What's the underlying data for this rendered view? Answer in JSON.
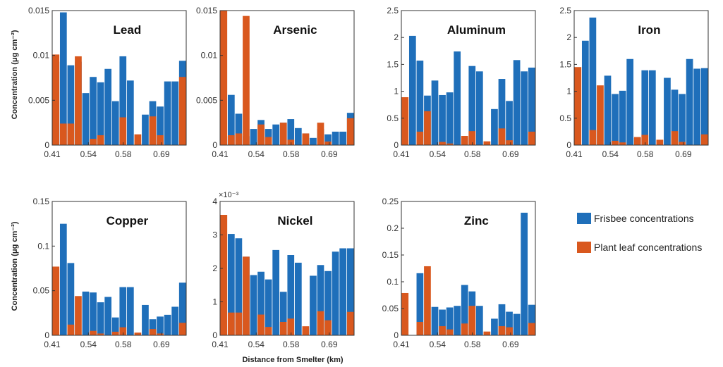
{
  "figure": {
    "ylabel": "Concentration (μg cm⁻²)",
    "xlabel": "Distance from Smelter (km)",
    "legend": [
      {
        "name": "Frisbee concentrations",
        "color": "#1f6fba"
      },
      {
        "name": "Plant leaf concentrations",
        "color": "#d9581e"
      }
    ]
  },
  "chart_data": [
    {
      "type": "bar",
      "title": "Lead",
      "ylim": [
        0,
        0.015
      ],
      "yticks": [
        "0",
        "0.005",
        "0.01",
        "0.015"
      ],
      "ytick_values": [
        0,
        0.005,
        0.01,
        0.015
      ],
      "xticks": [
        "0.41",
        "0.54",
        "0.58",
        "0.69"
      ],
      "series": [
        {
          "name": "Frisbee concentrations",
          "values": [
            0.0093,
            0.0148,
            0.0089,
            0.0093,
            0.0058,
            0.0076,
            0.007,
            0.0085,
            0.0049,
            0.0099,
            0.0072,
            0.0002,
            0.0034,
            0.0049,
            0.0043,
            0.0071,
            0.0071,
            0.0094
          ]
        },
        {
          "name": "Plant leaf concentrations",
          "values": [
            0.0101,
            0.0024,
            0.0024,
            0.0099,
            0.0,
            0.0007,
            0.0011,
            0.0,
            0.0,
            0.0031,
            0.0,
            0.0012,
            0.0,
            0.0032,
            0.0011,
            0.0,
            0.0,
            0.0076
          ]
        }
      ]
    },
    {
      "type": "bar",
      "title": "Arsenic",
      "ylim": [
        0,
        0.015
      ],
      "yticks": [
        "0",
        "0.005",
        "0.01",
        "0.015"
      ],
      "ytick_values": [
        0,
        0.005,
        0.01,
        0.015
      ],
      "xticks": [
        "0.41",
        "0.54",
        "0.58",
        "0.69"
      ],
      "series": [
        {
          "name": "Frisbee concentrations",
          "values": [
            0.001,
            0.0056,
            0.0035,
            0.001,
            0.0018,
            0.0028,
            0.0018,
            0.0023,
            0.0025,
            0.0029,
            0.0019,
            0.0013,
            0.0008,
            0.0018,
            0.0012,
            0.0015,
            0.0015,
            0.0036
          ]
        },
        {
          "name": "Plant leaf concentrations",
          "values": [
            0.015,
            0.0011,
            0.0013,
            0.0144,
            0.0,
            0.0023,
            0.0009,
            0.0,
            0.0025,
            0.0006,
            0.0,
            0.0013,
            0.0,
            0.0025,
            0.0004,
            0.0,
            0.0,
            0.003
          ]
        }
      ]
    },
    {
      "type": "bar",
      "title": "Aluminum",
      "ylim": [
        0,
        2.5
      ],
      "yticks": [
        "0",
        "0.5",
        "1",
        "1.5",
        "2",
        "2.5"
      ],
      "ytick_values": [
        0,
        0.5,
        1,
        1.5,
        2,
        2.5
      ],
      "xticks": [
        "0.41",
        "0.54",
        "0.58",
        "0.69"
      ],
      "series": [
        {
          "name": "Frisbee concentrations",
          "values": [
            0.0,
            2.03,
            1.57,
            0.92,
            1.2,
            0.93,
            0.98,
            1.74,
            0.14,
            1.47,
            1.37,
            0.0,
            0.67,
            1.23,
            0.82,
            1.58,
            1.37,
            1.44
          ]
        },
        {
          "name": "Plant leaf concentrations",
          "values": [
            0.89,
            0.0,
            0.25,
            0.63,
            0.0,
            0.06,
            0.03,
            0.0,
            0.17,
            0.26,
            0.0,
            0.07,
            0.0,
            0.31,
            0.09,
            0.0,
            0.0,
            0.25
          ]
        }
      ]
    },
    {
      "type": "bar",
      "title": "Iron",
      "ylim": [
        0,
        2.5
      ],
      "yticks": [
        "0",
        "0.5",
        "1",
        "1.5",
        "2",
        "2.5"
      ],
      "ytick_values": [
        0,
        0.5,
        1,
        1.5,
        2,
        2.5
      ],
      "xticks": [
        "0.41",
        "0.54",
        "0.58",
        "0.69"
      ],
      "series": [
        {
          "name": "Frisbee concentrations",
          "values": [
            0.0,
            1.94,
            2.37,
            0.0,
            1.29,
            0.95,
            1.01,
            1.6,
            0.13,
            1.39,
            1.39,
            0.0,
            1.25,
            1.03,
            0.95,
            1.6,
            1.42,
            1.43
          ]
        },
        {
          "name": "Plant leaf concentrations",
          "values": [
            1.45,
            0.0,
            0.28,
            1.11,
            0.0,
            0.08,
            0.05,
            0.0,
            0.15,
            0.19,
            0.0,
            0.1,
            0.0,
            0.26,
            0.06,
            0.0,
            0.0,
            0.2
          ]
        }
      ]
    },
    {
      "type": "bar",
      "title": "Copper",
      "ylim": [
        0,
        0.15
      ],
      "yticks": [
        "0",
        "0.05",
        "0.1",
        "0.15"
      ],
      "ytick_values": [
        0,
        0.05,
        0.1,
        0.15
      ],
      "xticks": [
        "0.41",
        "0.54",
        "0.58",
        "0.69"
      ],
      "series": [
        {
          "name": "Frisbee concentrations",
          "values": [
            0.0,
            0.125,
            0.081,
            0.0,
            0.049,
            0.048,
            0.037,
            0.043,
            0.02,
            0.054,
            0.054,
            0.0,
            0.034,
            0.018,
            0.021,
            0.023,
            0.032,
            0.059
          ]
        },
        {
          "name": "Plant leaf concentrations",
          "values": [
            0.077,
            0.0,
            0.012,
            0.044,
            0.0,
            0.005,
            0.002,
            0.0,
            0.004,
            0.009,
            0.0,
            0.003,
            0.0,
            0.007,
            0.002,
            0.0,
            0.0,
            0.014
          ]
        }
      ]
    },
    {
      "type": "bar",
      "title": "Nickel",
      "ylim": [
        0,
        4
      ],
      "yexponent": "×10⁻³",
      "yticks": [
        "0",
        "1",
        "2",
        "3",
        "4"
      ],
      "ytick_values": [
        0,
        1,
        2,
        3,
        4
      ],
      "xticks": [
        "0.41",
        "0.54",
        "0.58",
        "0.69"
      ],
      "series": [
        {
          "name": "Frisbee concentrations",
          "values": [
            0.0,
            3.03,
            2.9,
            2.35,
            1.8,
            1.9,
            1.67,
            2.55,
            1.3,
            2.4,
            2.17,
            0.0,
            1.78,
            2.1,
            1.92,
            2.5,
            2.6,
            2.6
          ]
        },
        {
          "name": "Plant leaf concentrations",
          "values": [
            3.6,
            0.68,
            0.68,
            2.35,
            0.0,
            0.62,
            0.25,
            0.0,
            0.4,
            0.5,
            0.0,
            0.27,
            0.0,
            0.72,
            0.45,
            0.0,
            0.0,
            0.7
          ]
        }
      ]
    },
    {
      "type": "bar",
      "title": "Zinc",
      "ylim": [
        0,
        0.25
      ],
      "yticks": [
        "0",
        "0.05",
        "0.1",
        "0.15",
        "0.2",
        "0.25"
      ],
      "ytick_values": [
        0,
        0.05,
        0.1,
        0.15,
        0.2,
        0.25
      ],
      "xticks": [
        "0.41",
        "0.54",
        "0.58",
        "0.69"
      ],
      "series": [
        {
          "name": "Frisbee concentrations",
          "values": [
            0.0,
            0.0,
            0.116,
            0.0,
            0.053,
            0.048,
            0.052,
            0.055,
            0.094,
            0.082,
            0.055,
            0.0,
            0.031,
            0.058,
            0.044,
            0.04,
            0.229,
            0.057
          ]
        },
        {
          "name": "Plant leaf concentrations",
          "values": [
            0.079,
            0.0,
            0.025,
            0.129,
            0.0,
            0.017,
            0.011,
            0.0,
            0.022,
            0.055,
            0.0,
            0.007,
            0.0,
            0.017,
            0.015,
            0.0,
            0.0,
            0.023
          ]
        }
      ]
    }
  ]
}
